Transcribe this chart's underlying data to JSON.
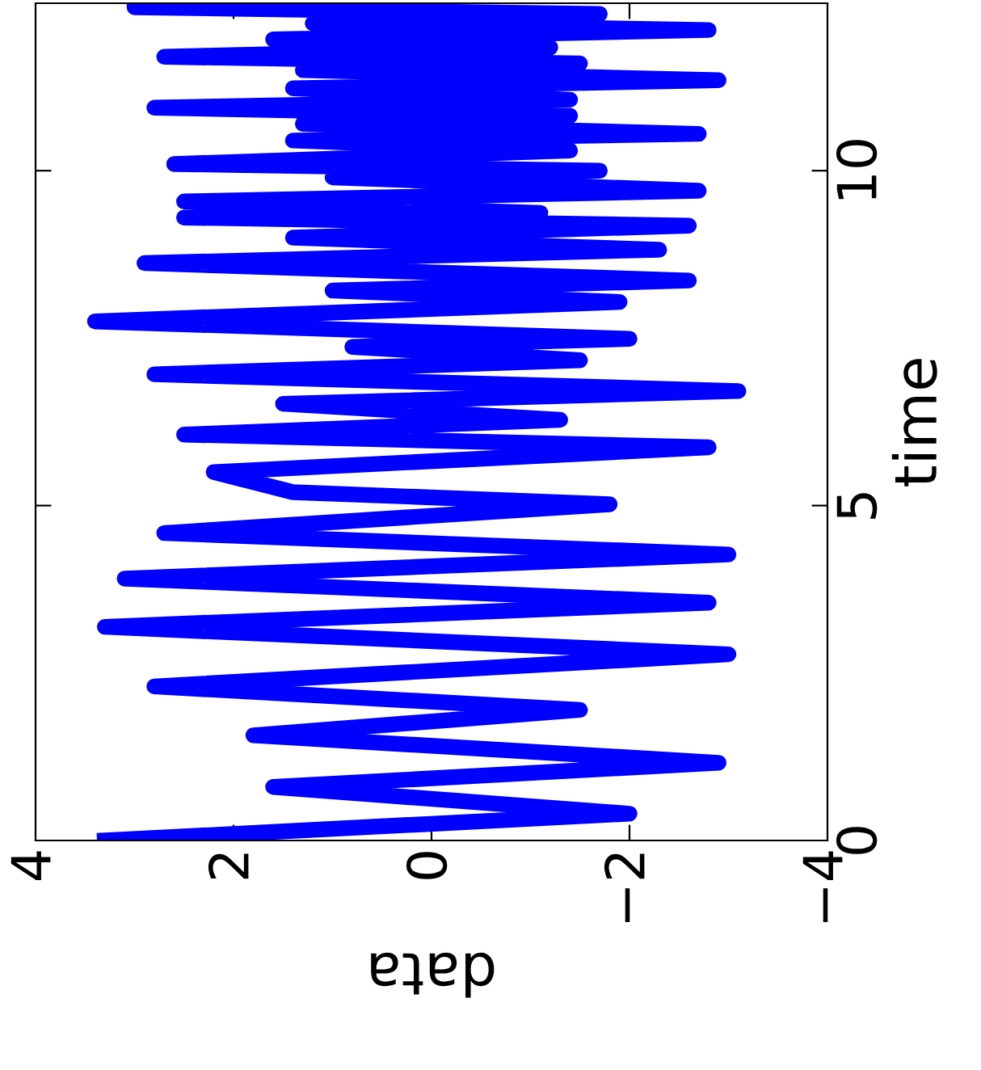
{
  "chart_data": {
    "type": "line",
    "xlabel": "data",
    "ylabel": "time",
    "series": [
      {
        "color": "#0000ff",
        "x": [
          3.3,
          -2.0,
          1.6,
          -2.9,
          1.8,
          -1.5,
          2.8,
          -3.0,
          3.3,
          -2.8,
          3.1,
          -3.0,
          2.7,
          -1.8,
          1.4,
          2.2,
          -2.8,
          2.5,
          -1.3,
          1.5,
          -3.1,
          2.8,
          -1.5,
          0.8,
          -2.0,
          3.4,
          -1.9,
          1.0,
          -2.6,
          2.9,
          -2.3,
          1.4,
          -2.6,
          2.5,
          -1.1,
          2.5,
          -2.7,
          1.0,
          -1.7,
          2.6,
          -1.4,
          1.4,
          -2.7,
          1.3,
          -1.4,
          2.8,
          -1.4,
          1.4,
          -2.9,
          1.3,
          -1.5,
          2.7,
          -1.2,
          1.6,
          -2.8,
          1.2,
          -1.7,
          3.0,
          3.0
        ],
        "values": [
          0,
          0.4,
          0.8,
          1.16,
          1.57,
          1.95,
          2.3,
          2.78,
          3.19,
          3.55,
          3.91,
          4.27,
          4.59,
          5.02,
          5.2,
          5.5,
          5.87,
          6.06,
          6.28,
          6.52,
          6.71,
          6.96,
          7.17,
          7.37,
          7.49,
          7.75,
          8.04,
          8.21,
          8.36,
          8.62,
          8.82,
          9.0,
          9.18,
          9.3,
          9.37,
          9.54,
          9.7,
          9.9,
          10.0,
          10.1,
          10.3,
          10.45,
          10.55,
          10.7,
          10.82,
          10.94,
          11.06,
          11.23,
          11.35,
          11.5,
          11.6,
          11.7,
          11.84,
          11.96,
          12.1,
          12.2,
          12.34,
          12.44,
          12.5
        ]
      }
    ],
    "xlim": [
      4,
      -4
    ],
    "xticks": [
      4,
      2,
      0,
      {
        "value": -2,
        "label": "−2"
      },
      {
        "value": -4,
        "label": "−4"
      }
    ],
    "ylim": [
      0,
      12.5
    ],
    "yticks": [
      0,
      5,
      10
    ],
    "grid": false,
    "legend": false,
    "marker": "none",
    "line_style": "solid"
  }
}
